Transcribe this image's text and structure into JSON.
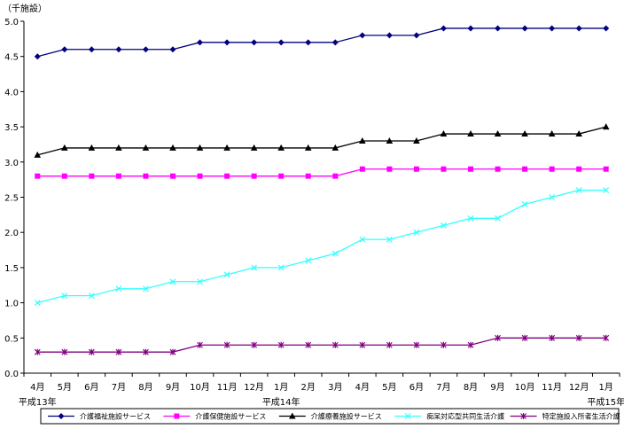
{
  "chart_data": {
    "type": "line",
    "unit_label": "（千施設）",
    "categories": [
      "4月",
      "5月",
      "6月",
      "7月",
      "8月",
      "9月",
      "10月",
      "11月",
      "12月",
      "1月",
      "2月",
      "3月",
      "4月",
      "5月",
      "6月",
      "7月",
      "8月",
      "9月",
      "10月",
      "11月",
      "12月",
      "1月"
    ],
    "year_labels": [
      {
        "at_index": 0,
        "text": "平成13年"
      },
      {
        "at_index": 9,
        "text": "平成14年"
      },
      {
        "at_index": 21,
        "text": "平成15年"
      }
    ],
    "ylim": [
      0,
      5
    ],
    "yticks": [
      "0.0",
      "0.5",
      "1.0",
      "1.5",
      "2.0",
      "2.5",
      "3.0",
      "3.5",
      "4.0",
      "4.5",
      "5.0"
    ],
    "legend_position": "bottom",
    "series": [
      {
        "name": "介護福祉施設サービス",
        "color": "#000080",
        "marker": "diamond",
        "values": [
          4.5,
          4.6,
          4.6,
          4.6,
          4.6,
          4.6,
          4.7,
          4.7,
          4.7,
          4.7,
          4.7,
          4.7,
          4.8,
          4.8,
          4.8,
          4.9,
          4.9,
          4.9,
          4.9,
          4.9,
          4.9,
          4.9
        ]
      },
      {
        "name": "介護保健施設サービス",
        "color": "#ff00ff",
        "marker": "square",
        "values": [
          2.8,
          2.8,
          2.8,
          2.8,
          2.8,
          2.8,
          2.8,
          2.8,
          2.8,
          2.8,
          2.8,
          2.8,
          2.9,
          2.9,
          2.9,
          2.9,
          2.9,
          2.9,
          2.9,
          2.9,
          2.9,
          2.9
        ]
      },
      {
        "name": "介護療養施設サービス",
        "color": "#000000",
        "marker": "triangle",
        "values": [
          3.1,
          3.2,
          3.2,
          3.2,
          3.2,
          3.2,
          3.2,
          3.2,
          3.2,
          3.2,
          3.2,
          3.2,
          3.3,
          3.3,
          3.3,
          3.4,
          3.4,
          3.4,
          3.4,
          3.4,
          3.4,
          3.5
        ]
      },
      {
        "name": "痴呆対応型共同生活介護",
        "color": "#33ffff",
        "marker": "x",
        "values": [
          1.0,
          1.1,
          1.1,
          1.2,
          1.2,
          1.3,
          1.3,
          1.4,
          1.5,
          1.5,
          1.6,
          1.7,
          1.9,
          1.9,
          2.0,
          2.1,
          2.2,
          2.2,
          2.4,
          2.5,
          2.6,
          2.6
        ]
      },
      {
        "name": "特定施設入所者生活介護",
        "color": "#800080",
        "marker": "star",
        "values": [
          0.3,
          0.3,
          0.3,
          0.3,
          0.3,
          0.3,
          0.4,
          0.4,
          0.4,
          0.4,
          0.4,
          0.4,
          0.4,
          0.4,
          0.4,
          0.4,
          0.4,
          0.5,
          0.5,
          0.5,
          0.5,
          0.5
        ]
      }
    ]
  }
}
